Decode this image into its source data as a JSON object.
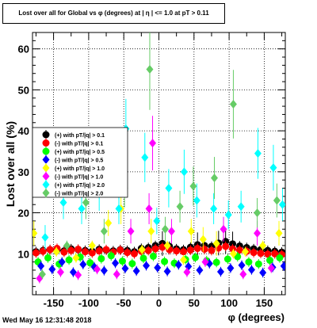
{
  "chart_data": {
    "type": "scatter",
    "title": "Lost over all for Global vs φ (degrees) at | η | <= 1.0 at pT > 0.11",
    "xlabel": "φ (degrees)",
    "ylabel": "Lost over all (%)",
    "xlim": [
      -180,
      180
    ],
    "ylim": [
      0,
      64
    ],
    "grid": true,
    "legend_position": "left-middle",
    "date": "Wed May 16 12:31:48 2018",
    "x_ticks": [
      -150,
      -100,
      -50,
      0,
      50,
      100,
      150
    ],
    "y_ticks": [
      10,
      20,
      30,
      40,
      50,
      60
    ],
    "series": [
      {
        "name": "(+) with pT/|q| > 0.1",
        "color": "#000000",
        "marker": "circle",
        "x": [
          -175,
          -165,
          -155,
          -145,
          -135,
          -125,
          -115,
          -105,
          -95,
          -85,
          -75,
          -65,
          -55,
          -45,
          -35,
          -25,
          -15,
          -5,
          5,
          15,
          25,
          35,
          45,
          55,
          65,
          75,
          85,
          95,
          105,
          115,
          125,
          135,
          145,
          155,
          165,
          175
        ],
        "y": [
          10.5,
          10.8,
          11.0,
          10.9,
          10.7,
          11.2,
          11.0,
          10.8,
          10.6,
          11.1,
          10.9,
          10.7,
          11.0,
          10.8,
          10.5,
          11.3,
          11.5,
          12.0,
          12.5,
          11.8,
          11.2,
          11.0,
          11.6,
          12.2,
          12.0,
          11.8,
          12.6,
          13.0,
          12.4,
          11.9,
          11.5,
          11.2,
          11.0,
          10.8,
          10.6,
          10.4
        ]
      },
      {
        "name": "(-) with pT/|q| > 0.1",
        "color": "#ff0000",
        "marker": "circle",
        "x": [
          -175,
          -165,
          -155,
          -145,
          -135,
          -125,
          -115,
          -105,
          -95,
          -85,
          -75,
          -65,
          -55,
          -45,
          -35,
          -25,
          -15,
          -5,
          5,
          15,
          25,
          35,
          45,
          55,
          65,
          75,
          85,
          95,
          105,
          115,
          125,
          135,
          145,
          155,
          165,
          175
        ],
        "y": [
          10.2,
          10.6,
          11.0,
          11.3,
          10.4,
          10.8,
          11.1,
          10.5,
          10.2,
          10.7,
          11.0,
          10.4,
          10.9,
          10.3,
          10.0,
          10.6,
          10.8,
          11.2,
          11.6,
          11.0,
          10.7,
          10.5,
          10.9,
          11.3,
          11.1,
          10.8,
          11.4,
          11.8,
          11.2,
          10.9,
          10.6,
          10.3,
          10.1,
          9.9,
          10.0,
          9.8
        ]
      },
      {
        "name": "(+) with pT/|q| > 0.5",
        "color": "#00ff00",
        "marker": "circle",
        "x": [
          -172,
          -158,
          -142,
          -128,
          -112,
          -98,
          -82,
          -68,
          -52,
          -38,
          -22,
          -8,
          8,
          22,
          38,
          52,
          68,
          82,
          98,
          112,
          128,
          142,
          158,
          172
        ],
        "y": [
          8.0,
          9.0,
          7.5,
          8.5,
          9.2,
          7.8,
          8.8,
          9.5,
          8.2,
          7.6,
          8.9,
          9.4,
          8.1,
          7.7,
          8.6,
          9.1,
          8.3,
          7.9,
          8.7,
          9.3,
          8.0,
          7.5,
          8.4,
          9.0
        ]
      },
      {
        "name": "(-) with pT/|q| > 0.5",
        "color": "#0000ff",
        "marker": "diamond",
        "x": [
          -168,
          -152,
          -138,
          -122,
          -108,
          -92,
          -78,
          -62,
          -48,
          -32,
          -18,
          -2,
          12,
          28,
          42,
          58,
          72,
          88,
          102,
          118,
          132,
          148,
          162,
          178
        ],
        "y": [
          7.0,
          6.2,
          8.0,
          5.5,
          7.4,
          6.8,
          5.9,
          7.7,
          6.4,
          5.8,
          7.1,
          6.6,
          5.7,
          7.3,
          6.9,
          6.0,
          7.6,
          5.6,
          6.5,
          7.2,
          6.1,
          5.4,
          6.7,
          7.0
        ]
      },
      {
        "name": "(+) with pT/|q| > 1.0",
        "color": "#ffff00",
        "marker": "diamond",
        "x": [
          -178,
          -146,
          -118,
          -95,
          -72,
          -54,
          -24,
          -11,
          12,
          35,
          46,
          63,
          82,
          106,
          123,
          148,
          171
        ],
        "y": [
          15.0,
          10.5,
          9.0,
          12.0,
          17.5,
          21.0,
          11.0,
          15.5,
          12.0,
          8.5,
          15.5,
          13.5,
          12.5,
          10.0,
          10.5,
          12.0,
          15.0
        ]
      },
      {
        "name": "(-) with pT/|q| > 1.0",
        "color": "#ff00ff",
        "marker": "diamond",
        "x": [
          -170,
          -140,
          -115,
          -88,
          -60,
          -40,
          -14,
          -9,
          18,
          40,
          66,
          92,
          120,
          140,
          160
        ],
        "y": [
          4.0,
          5.5,
          4.8,
          6.2,
          5.0,
          15.5,
          21.0,
          37.0,
          15.5,
          5.5,
          8.0,
          16.0,
          5.0,
          15.0,
          6.5
        ]
      },
      {
        "name": "(+) with pT/|q| > 2.0",
        "color": "#00ffff",
        "marker": "diamond",
        "x": [
          -162,
          -136,
          -110,
          -85,
          -57,
          -47,
          -20,
          -3,
          14,
          36,
          54,
          78,
          99,
          117,
          141,
          163,
          176
        ],
        "y": [
          14.0,
          22.5,
          21.0,
          25.0,
          21.0,
          40.5,
          33.5,
          18.0,
          26.0,
          30.0,
          23.0,
          21.0,
          19.5,
          21.5,
          34.5,
          31.0,
          22.0
        ]
      },
      {
        "name": "(-) with pT/|q| > 2.0",
        "color": "#66cc66",
        "marker": "diamond",
        "x": [
          -166,
          -131,
          -104,
          -78,
          -49,
          -13,
          9,
          30,
          49,
          79,
          106,
          140,
          168
        ],
        "y": [
          5.0,
          12.0,
          22.5,
          15.5,
          26.0,
          55.0,
          16.0,
          21.5,
          26.5,
          28.5,
          46.5,
          20.0,
          23.0
        ]
      }
    ]
  }
}
